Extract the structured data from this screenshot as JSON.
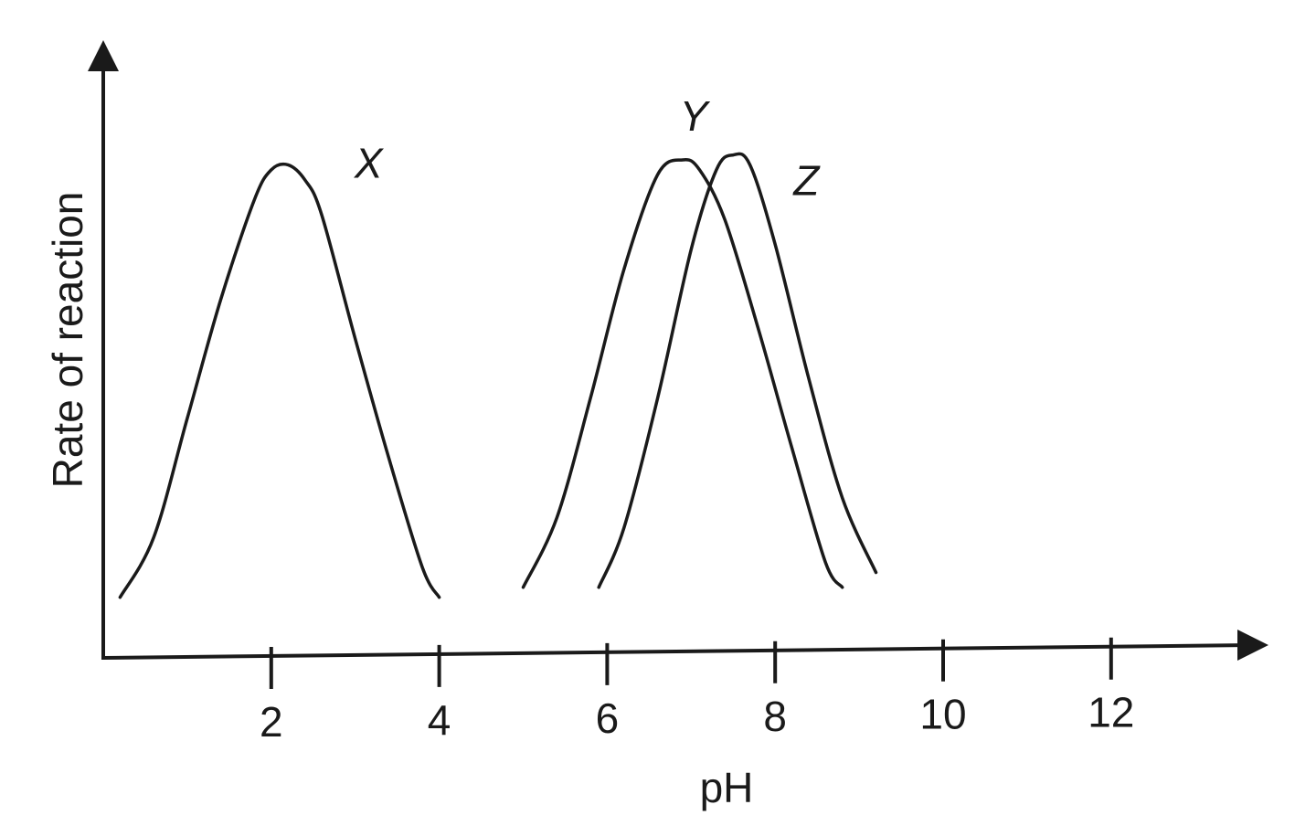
{
  "chart_data": {
    "type": "line",
    "title": "",
    "xlabel": "pH",
    "ylabel": "Rate of reaction",
    "x_ticks": [
      2,
      4,
      6,
      8,
      10,
      12
    ],
    "xlim": [
      0,
      14
    ],
    "ylim": [
      0,
      10
    ],
    "grid": false,
    "legend": "none",
    "y_ticks_shown": false,
    "series": [
      {
        "name": "X",
        "x": [
          0.2,
          0.6,
          1.0,
          1.4,
          1.8,
          2.0,
          2.2,
          2.4,
          2.6,
          3.0,
          3.4,
          3.8,
          4.0
        ],
        "y": [
          1.2,
          2.4,
          4.8,
          7.2,
          9.2,
          9.8,
          9.9,
          9.6,
          8.9,
          6.4,
          4.0,
          1.8,
          1.2
        ]
      },
      {
        "name": "Y",
        "x": [
          5.0,
          5.4,
          5.8,
          6.2,
          6.6,
          6.9,
          7.1,
          7.4,
          7.8,
          8.2,
          8.6,
          8.8
        ],
        "y": [
          1.4,
          2.8,
          5.2,
          7.8,
          9.7,
          10.0,
          9.8,
          8.8,
          6.6,
          4.2,
          1.9,
          1.4
        ]
      },
      {
        "name": "Z",
        "x": [
          5.9,
          6.2,
          6.6,
          7.0,
          7.3,
          7.5,
          7.7,
          8.0,
          8.4,
          8.8,
          9.2
        ],
        "y": [
          1.4,
          2.6,
          5.2,
          8.2,
          9.8,
          10.1,
          9.9,
          8.3,
          5.6,
          3.2,
          1.7
        ]
      }
    ]
  }
}
